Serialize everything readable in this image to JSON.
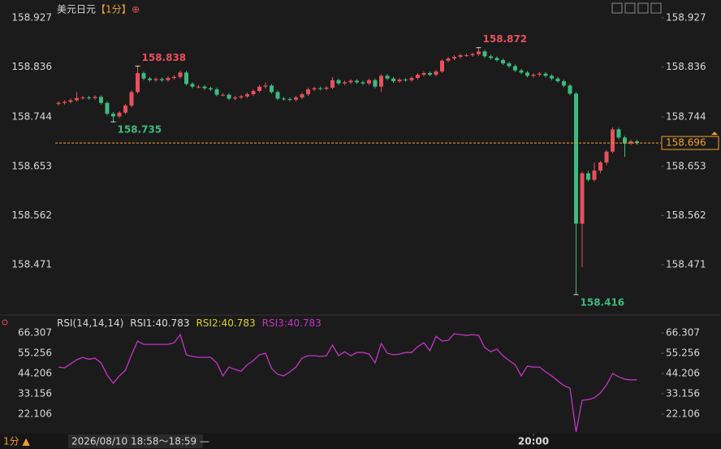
{
  "chart_data": {
    "type": "candlestick",
    "title": "美元日元",
    "period": "【1分】",
    "icon": "⊕",
    "up_color": "#e8505b",
    "down_color": "#3dbb7e",
    "ylim": [
      158.382,
      158.96
    ],
    "yticks": [
      158.927,
      158.836,
      158.744,
      158.653,
      158.562,
      158.471
    ],
    "xticks": [
      {
        "value": 78,
        "label": "20:00"
      }
    ],
    "open": [
      158.768,
      158.77,
      158.772,
      158.775,
      158.779,
      158.78,
      158.779,
      158.781,
      158.77,
      158.75,
      158.745,
      158.752,
      158.765,
      158.79,
      158.825,
      158.815,
      158.812,
      158.814,
      158.812,
      158.816,
      158.818,
      158.826,
      158.805,
      158.8,
      158.8,
      158.797,
      158.795,
      158.785,
      158.785,
      158.778,
      158.78,
      158.782,
      158.786,
      158.792,
      158.8,
      158.802,
      158.79,
      158.778,
      158.777,
      158.776,
      158.78,
      158.786,
      158.795,
      158.797,
      158.796,
      158.798,
      158.812,
      158.806,
      158.808,
      158.811,
      158.808,
      158.806,
      158.812,
      158.8,
      158.82,
      158.815,
      158.81,
      158.813,
      158.812,
      158.816,
      158.822,
      158.825,
      158.822,
      158.828,
      158.848,
      158.852,
      158.855,
      158.858,
      158.858,
      158.86,
      158.865,
      158.856,
      158.853,
      158.849,
      158.843,
      158.838,
      158.83,
      158.826,
      158.82,
      158.822,
      158.824,
      158.82,
      158.815,
      158.81,
      158.802,
      158.787,
      158.547,
      158.64,
      158.628,
      158.645,
      158.66,
      158.68,
      158.721,
      158.706,
      158.695,
      158.699
    ],
    "high": [
      158.773,
      158.775,
      158.778,
      158.79,
      158.783,
      158.783,
      158.784,
      158.784,
      158.773,
      158.753,
      158.755,
      158.768,
      158.793,
      158.838,
      158.828,
      158.818,
      158.817,
      158.817,
      158.819,
      158.821,
      158.83,
      158.829,
      158.808,
      158.803,
      158.803,
      158.8,
      158.798,
      158.788,
      158.788,
      158.783,
      158.785,
      158.789,
      158.795,
      158.803,
      158.808,
      158.805,
      158.793,
      158.781,
      158.78,
      158.783,
      158.789,
      158.798,
      158.8,
      158.8,
      158.801,
      158.818,
      158.815,
      158.811,
      158.814,
      158.814,
      158.811,
      158.815,
      158.815,
      158.823,
      158.823,
      158.818,
      158.816,
      158.816,
      158.819,
      158.825,
      158.828,
      158.828,
      158.831,
      158.851,
      158.855,
      158.858,
      158.861,
      158.861,
      158.863,
      158.872,
      158.868,
      158.859,
      158.856,
      158.852,
      158.846,
      158.841,
      158.833,
      158.829,
      158.825,
      158.827,
      158.827,
      158.823,
      158.818,
      158.813,
      158.805,
      158.79,
      158.643,
      158.645,
      158.66,
      158.663,
      158.683,
      158.725,
      158.724,
      158.709,
      158.702,
      158.702
    ],
    "low": [
      158.765,
      158.767,
      158.769,
      158.772,
      158.776,
      158.776,
      158.776,
      158.767,
      158.747,
      158.735,
      158.742,
      158.749,
      158.762,
      158.787,
      158.812,
      158.809,
      158.809,
      158.809,
      158.809,
      158.813,
      158.815,
      158.802,
      158.797,
      158.797,
      158.794,
      158.792,
      158.782,
      158.782,
      158.775,
      158.775,
      158.777,
      158.779,
      158.783,
      158.789,
      158.797,
      158.787,
      158.775,
      158.774,
      158.773,
      158.773,
      158.777,
      158.783,
      158.792,
      158.793,
      158.793,
      158.795,
      158.803,
      158.803,
      158.805,
      158.805,
      158.803,
      158.803,
      158.797,
      158.79,
      158.812,
      158.807,
      158.807,
      158.809,
      158.809,
      158.813,
      158.819,
      158.819,
      158.819,
      158.825,
      158.845,
      158.849,
      158.852,
      158.855,
      158.855,
      158.857,
      158.853,
      158.85,
      158.846,
      158.84,
      158.835,
      158.827,
      158.823,
      158.817,
      158.817,
      158.819,
      158.817,
      158.812,
      158.807,
      158.799,
      158.784,
      158.416,
      158.467,
      158.625,
      158.625,
      158.64,
      158.655,
      158.677,
      158.703,
      158.67,
      158.692,
      158.693
    ],
    "close": [
      158.77,
      158.772,
      158.775,
      158.779,
      158.78,
      158.779,
      158.781,
      158.77,
      158.75,
      158.745,
      158.752,
      158.765,
      158.79,
      158.825,
      158.815,
      158.812,
      158.814,
      158.812,
      158.816,
      158.818,
      158.826,
      158.805,
      158.8,
      158.8,
      158.797,
      158.795,
      158.785,
      158.785,
      158.778,
      158.78,
      158.782,
      158.786,
      158.792,
      158.8,
      158.802,
      158.79,
      158.778,
      158.777,
      158.776,
      158.78,
      158.786,
      158.795,
      158.797,
      158.796,
      158.798,
      158.812,
      158.806,
      158.808,
      158.811,
      158.808,
      158.806,
      158.812,
      158.8,
      158.82,
      158.815,
      158.81,
      158.813,
      158.812,
      158.816,
      158.822,
      158.825,
      158.822,
      158.828,
      158.848,
      158.852,
      158.855,
      158.858,
      158.858,
      158.86,
      158.865,
      158.856,
      158.853,
      158.849,
      158.843,
      158.838,
      158.83,
      158.826,
      158.82,
      158.822,
      158.824,
      158.82,
      158.815,
      158.81,
      158.802,
      158.787,
      158.547,
      158.64,
      158.628,
      158.645,
      158.66,
      158.68,
      158.721,
      158.706,
      158.695,
      158.699,
      158.696
    ],
    "annotations": [
      {
        "index": 13,
        "field": "high",
        "color": "#e8505b"
      },
      {
        "index": 9,
        "field": "low",
        "color": "#3dbb7e"
      },
      {
        "index": 69,
        "field": "high",
        "color": "#e8505b"
      },
      {
        "index": 85,
        "field": "low",
        "color": "#3dbb7e"
      }
    ],
    "last_price_color": "#f0a030",
    "rsi": {
      "label": "RSI(14,14,14)",
      "ylim": [
        11,
        73
      ],
      "yticks": [
        66.307,
        55.256,
        44.206,
        33.156,
        22.106
      ],
      "series": [
        {
          "name": "RSI3:",
          "color": "#c535c5",
          "values": [
            47.7,
            47.3,
            49.5,
            51.7,
            53.0,
            52.0,
            52.6,
            50.0,
            43.3,
            38.9,
            42.9,
            46.0,
            54.4,
            61.9,
            60.1,
            60.1,
            60.1,
            60.1,
            60.1,
            61.0,
            65.4,
            54.4,
            53.5,
            53.0,
            53.0,
            53.0,
            50.0,
            42.9,
            47.7,
            46.4,
            45.5,
            49.0,
            51.3,
            54.4,
            55.3,
            46.9,
            43.8,
            42.9,
            45.1,
            47.7,
            52.6,
            53.9,
            53.9,
            53.5,
            53.9,
            59.7,
            53.9,
            56.1,
            53.9,
            55.7,
            55.7,
            54.8,
            50.0,
            60.6,
            55.3,
            54.4,
            54.8,
            55.7,
            55.7,
            58.8,
            61.0,
            56.6,
            64.5,
            61.9,
            62.3,
            65.9,
            65.4,
            65.0,
            65.4,
            65.0,
            58.3,
            56.1,
            57.5,
            53.9,
            51.3,
            49.0,
            42.9,
            48.2,
            47.7,
            47.7,
            45.1,
            42.9,
            40.2,
            37.6,
            36.2,
            12.4,
            29.6,
            30.0,
            30.9,
            33.6,
            38.0,
            44.2,
            42.4,
            41.1,
            40.7,
            40.783
          ]
        }
      ],
      "readouts": [
        {
          "name": "RSI1:",
          "value": 40.783,
          "color": "#dddddd"
        },
        {
          "name": "RSI2:",
          "value": 40.783,
          "color": "#e0d030"
        }
      ]
    },
    "footer": {
      "period": "1分 ▲",
      "crosshair": "2026/08/10 18:58～18:59 —"
    }
  }
}
